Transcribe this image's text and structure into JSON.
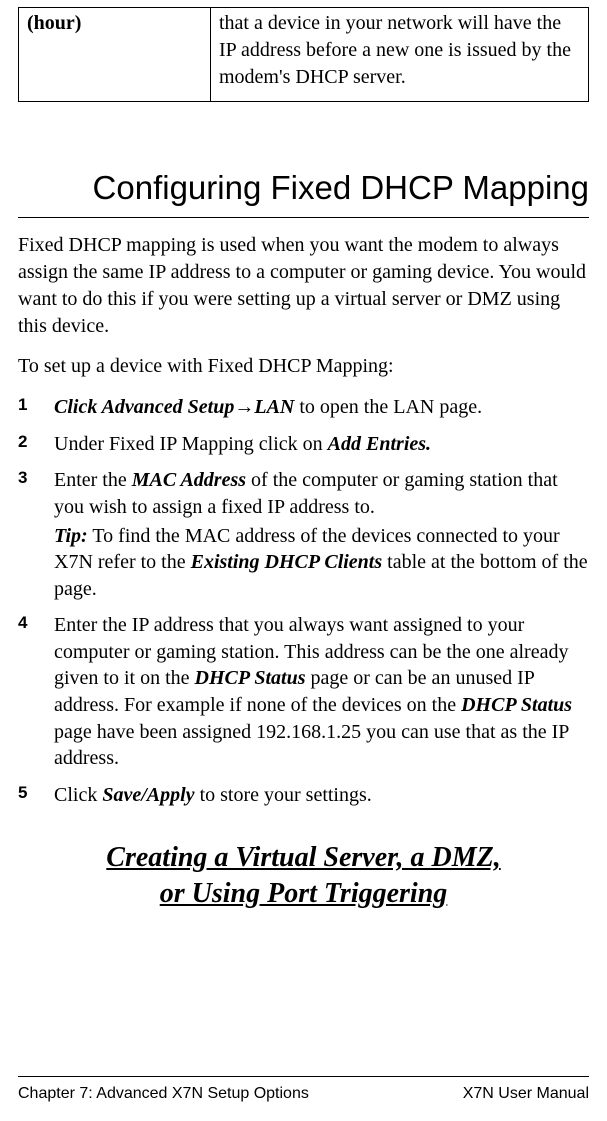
{
  "table_fragment": {
    "left": "(hour)",
    "right": "that a device in your network will have the IP address before a new one is issued by the modem's DHCP server."
  },
  "heading1": "Configuring Fixed DHCP Mapping",
  "intro_para": "Fixed DHCP mapping is used when you want the modem to always assign the same IP address to a computer or gaming device. You would want to do this if you were setting up a virtual server or DMZ using this device.",
  "lead_para": "To set up a device with Fixed DHCP Mapping:",
  "steps": {
    "s1": {
      "num": "1",
      "bold1": "Click Advanced Setup",
      "arrow": "→",
      "bold2": "LAN",
      "tail": " to open the LAN page."
    },
    "s2": {
      "num": "2",
      "pre": "Under Fixed IP Mapping click on ",
      "bold": "Add Entries."
    },
    "s3": {
      "num": "3",
      "pre": "Enter the ",
      "bold": "MAC Address",
      "post": " of the computer or gaming station that you wish to assign a fixed IP address to.",
      "tip_label": "Tip:",
      "tip_pre": " To find the MAC address of the devices connected to your X7N refer to the ",
      "tip_bold": "Existing DHCP Clients",
      "tip_post": " table at the bottom of the page."
    },
    "s4": {
      "num": "4",
      "pre": "Enter the IP address that you always want assigned to your computer or gaming station.  This address can be the one already given to it on the ",
      "bold1": "DHCP Status",
      "mid": " page or can be an unused IP address.  For example if none of the devices on the ",
      "bold2": "DHCP Status",
      "post": " page have been assigned 192.168.1.25 you can use that as the IP address."
    },
    "s5": {
      "num": "5",
      "pre": "Click ",
      "bold": "Save/Apply",
      "post": " to store your settings."
    }
  },
  "heading2_line1": "Creating a Virtual Server, a DMZ,",
  "heading2_line2": "or Using Port Triggering",
  "footer": {
    "left": "Chapter 7: Advanced X7N Setup Options",
    "right": "X7N User Manual"
  },
  "colors": {
    "text": "#000000",
    "background": "#ffffff",
    "rule": "#000000"
  },
  "fonts": {
    "body_family": "Garamond / Times",
    "heading_family": "Verdana / Tahoma",
    "body_size_pt": 15,
    "h1_size_pt": 25,
    "h2_size_pt": 21,
    "footer_size_pt": 12
  }
}
